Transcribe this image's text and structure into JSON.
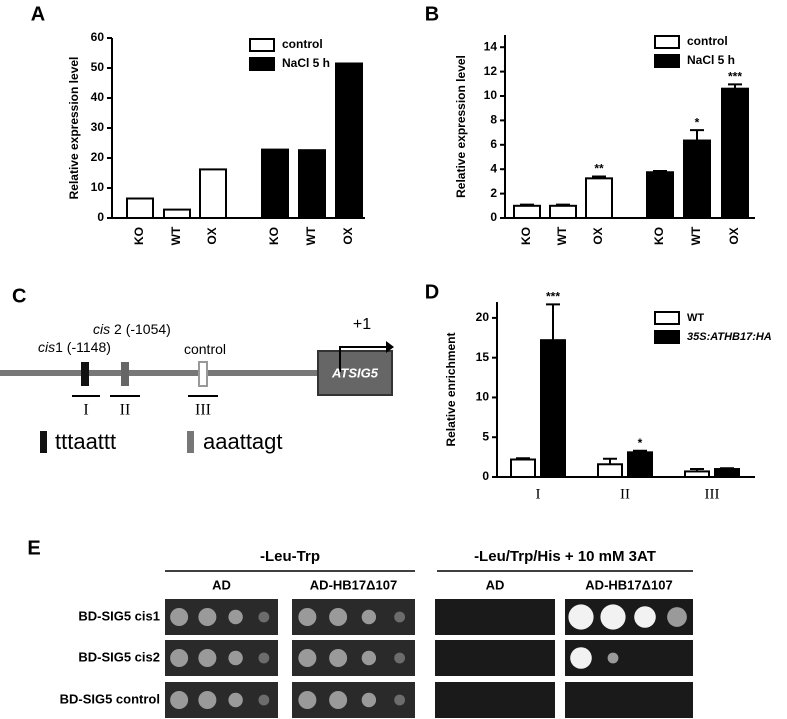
{
  "chart_data": [
    {
      "type": "bar",
      "panel": "A",
      "ylabel": "Relative expression level",
      "categories": [
        "KO",
        "WT",
        "OX",
        "KO",
        "WT",
        "OX"
      ],
      "series": [
        {
          "name": "control",
          "color": "#ffffff",
          "values": [
            6.5,
            2.8,
            16.2,
            null,
            null,
            null
          ]
        },
        {
          "name": "NaCl 5 h",
          "color": "#000000",
          "values": [
            null,
            null,
            null,
            22.8,
            22.6,
            51.5
          ]
        }
      ],
      "ylim": [
        0,
        60
      ],
      "yticks": [
        0,
        10,
        20,
        30,
        40,
        50,
        60
      ]
    },
    {
      "type": "bar",
      "panel": "B",
      "ylabel": "Relative expression level",
      "categories": [
        "KO",
        "WT",
        "OX",
        "KO",
        "WT",
        "OX"
      ],
      "series": [
        {
          "name": "control",
          "color": "#ffffff",
          "values": [
            1.0,
            1.0,
            3.25,
            null,
            null,
            null
          ],
          "errors": [
            0.1,
            0.1,
            0.15,
            null,
            null,
            null
          ],
          "sig": [
            null,
            null,
            "**",
            null,
            null,
            null
          ]
        },
        {
          "name": "NaCl 5 h",
          "color": "#000000",
          "values": [
            null,
            null,
            null,
            3.75,
            6.35,
            10.6
          ],
          "errors": [
            null,
            null,
            null,
            0.1,
            0.85,
            0.35
          ],
          "sig": [
            null,
            null,
            null,
            null,
            "*",
            "***"
          ]
        }
      ],
      "ylim": [
        0,
        15
      ],
      "yticks": [
        0,
        2,
        4,
        6,
        8,
        10,
        12,
        14
      ]
    },
    {
      "type": "grouped-bar",
      "panel": "D",
      "ylabel": "Relative enrichment",
      "categories": [
        "I",
        "II",
        "III"
      ],
      "series": [
        {
          "name": "WT",
          "color": "#ffffff",
          "values": [
            2.2,
            1.6,
            0.7
          ],
          "errors": [
            0.15,
            0.7,
            0.3
          ],
          "sig": [
            null,
            null,
            null
          ]
        },
        {
          "name": "35S:ATHB17:HA",
          "color": "#000000",
          "values": [
            17.2,
            3.1,
            1.0
          ],
          "errors": [
            4.5,
            0.2,
            0.1
          ],
          "sig": [
            "***",
            "*",
            null
          ]
        }
      ],
      "ylim": [
        0,
        22
      ],
      "yticks": [
        0,
        5,
        10,
        15,
        20
      ]
    }
  ],
  "panel_c": {
    "panel": "C",
    "sites": [
      {
        "italic": "cis",
        "rest": "1 (-1148)"
      },
      {
        "italic": "cis",
        "rest": " 2 (-1054)"
      },
      {
        "italic": "",
        "rest": "control"
      }
    ],
    "regions": [
      "I",
      "II",
      "III"
    ],
    "gene": "ATSIG5",
    "tss": "+1",
    "motifs": [
      "tttaattt",
      "aaattagt"
    ]
  },
  "panel_e": {
    "panel": "E",
    "conditions": [
      "-Leu-Trp",
      "-Leu/Trp/His + 10 mM 3AT"
    ],
    "columns": [
      "AD",
      "AD-HB17Δ107",
      "AD",
      "AD-HB17Δ107"
    ],
    "rows": [
      "BD-SIG5 cis1",
      "BD-SIG5 cis2",
      "BD-SIG5 control"
    ]
  }
}
